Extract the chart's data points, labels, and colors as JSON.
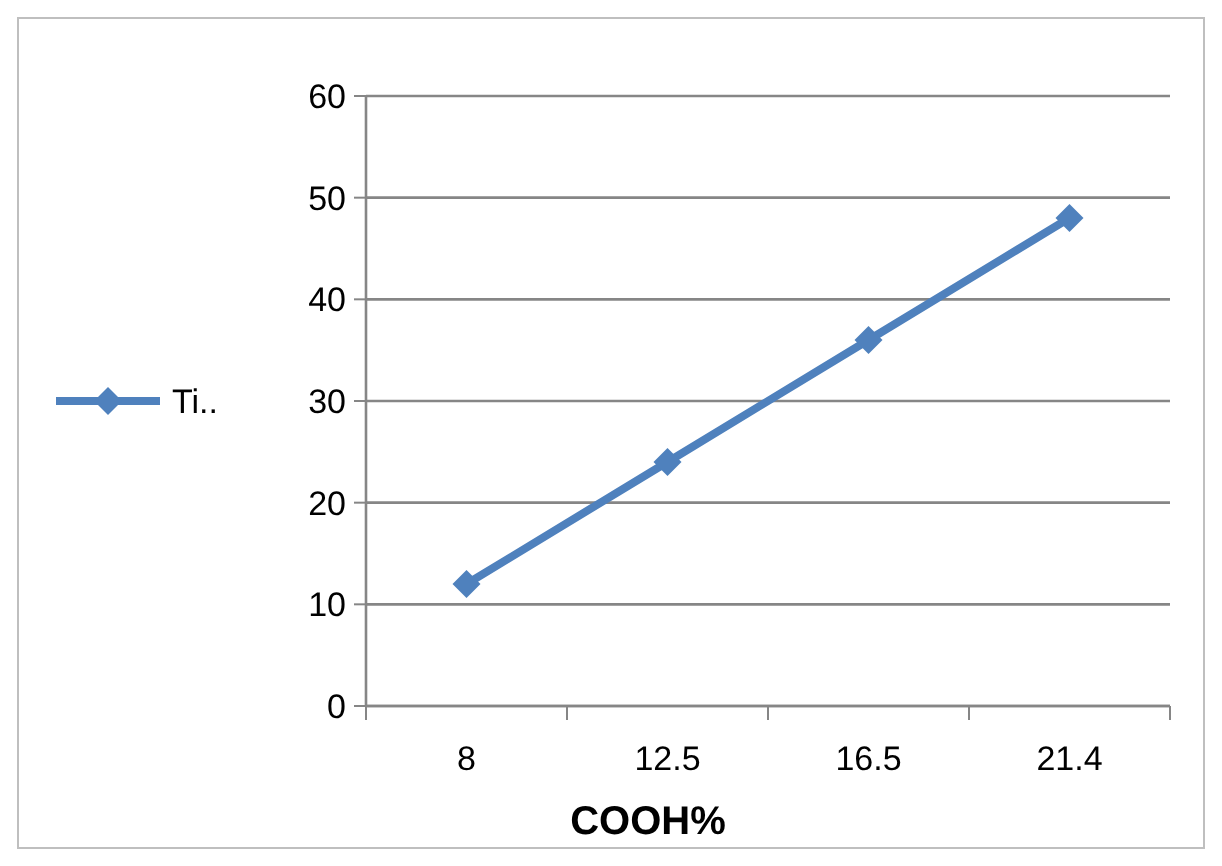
{
  "chart_data": {
    "type": "line",
    "xlabel": "COOH%",
    "categories": [
      "8",
      "12.5",
      "16.5",
      "21.4"
    ],
    "series": [
      {
        "name": "Ti..",
        "color": "#4f81bd",
        "values": [
          12,
          24,
          36,
          48
        ]
      }
    ],
    "ylim": [
      0,
      60
    ],
    "yticks": [
      0,
      10,
      20,
      30,
      40,
      50,
      60
    ],
    "grid": "y",
    "legend": "left",
    "marker": "diamond"
  }
}
